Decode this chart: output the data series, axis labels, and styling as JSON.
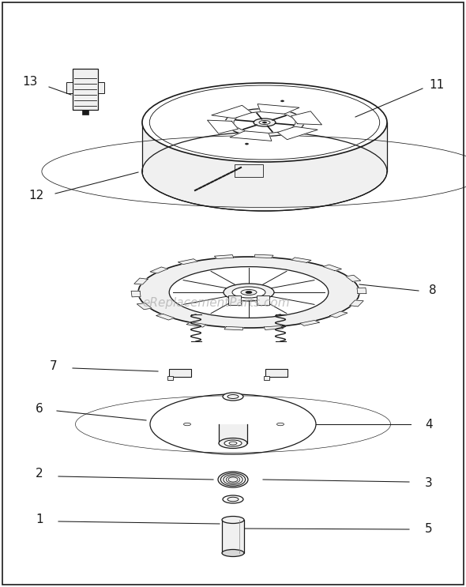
{
  "background_color": "#ffffff",
  "border_color": "#000000",
  "watermark_text": "eReplacementParts.com",
  "watermark_color": "#aaaaaa",
  "watermark_fontsize": 11,
  "label_fontsize": 11,
  "figsize": [
    5.9,
    7.43
  ],
  "dpi": 100,
  "line_color": "#1a1a1a",
  "fill_white": "#ffffff",
  "fill_light": "#f0f0f0",
  "fill_mid": "#d8d8d8"
}
